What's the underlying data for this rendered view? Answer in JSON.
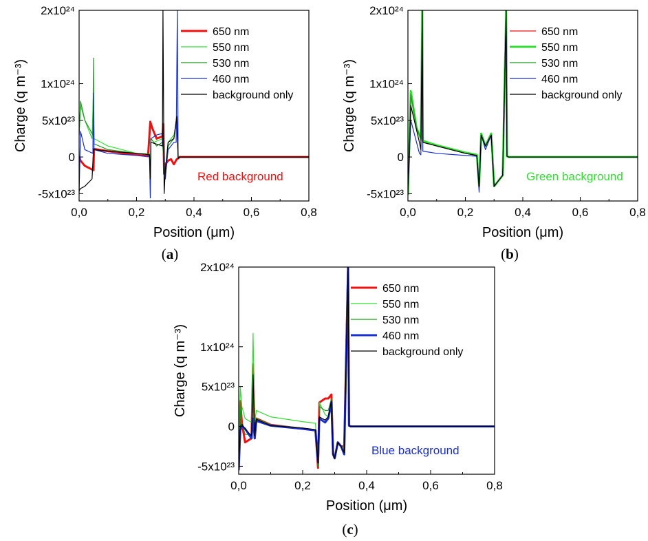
{
  "chart_data": [
    {
      "type": "line",
      "panel_label": "(a)",
      "annotation": "Red background",
      "annotation_color": "#ee1111",
      "xlabel": "Position (μm)",
      "ylabel": "Charge (q m⁻³)",
      "xlim": [
        0,
        0.8
      ],
      "ylim": [
        -6e+23,
        2e+24
      ],
      "xticks": [
        0,
        0.2,
        0.4,
        0.6,
        0.8
      ],
      "xtick_labels": [
        "0,0",
        "0,2",
        "0,4",
        "0,6",
        "0,8"
      ],
      "yticks": [
        -5e+23,
        0,
        5e+23,
        1e+24,
        2e+24
      ],
      "ytick_labels": [
        "-5x10²³",
        "0",
        "5x10²³",
        "1x10²⁴",
        "2x10²⁴"
      ],
      "legend_position": "top-right",
      "series": [
        {
          "name": "650 nm",
          "color": "#ee1111",
          "width": 3,
          "x": [
            0,
            0.005,
            0.02,
            0.05,
            0.052,
            0.1,
            0.2,
            0.24,
            0.248,
            0.255,
            0.27,
            0.29,
            0.293,
            0.296,
            0.3,
            0.31,
            0.32,
            0.33,
            0.34,
            0.345,
            0.35,
            0.8
          ],
          "y": [
            1e+22,
            -5e+22,
            -1.2e+23,
            -1.8e+23,
            1.1e+23,
            8e+22,
            3e+22,
            1e+22,
            4.8e+23,
            3.9e+23,
            2.5e+23,
            2.8e+23,
            4.5e+23,
            -2.3e+23,
            -1e+23,
            -5e+22,
            -3e+22,
            -1e+23,
            -3e+22,
            -2e+22,
            0,
            0
          ]
        },
        {
          "name": "550 nm",
          "color": "#33dd33",
          "width": 1.2,
          "x": [
            0,
            0.005,
            0.02,
            0.045,
            0.05,
            0.052,
            0.1,
            0.2,
            0.245,
            0.248,
            0.25,
            0.26,
            0.29,
            0.3,
            0.31,
            0.33,
            0.34,
            0.345,
            0.35,
            0.8
          ],
          "y": [
            3e+23,
            7e+23,
            5e+23,
            2.5e+23,
            9e+23,
            2.5e+23,
            1.5e+23,
            5e+22,
            4e+22,
            -2e+23,
            2.5e+23,
            2e+23,
            2.5e+23,
            -2.5e+23,
            2e+23,
            3e+23,
            5e+23,
            -2e+22,
            0,
            0
          ]
        },
        {
          "name": "530 nm",
          "color": "#229922",
          "width": 1.2,
          "x": [
            0,
            0.005,
            0.02,
            0.048,
            0.05,
            0.052,
            0.1,
            0.2,
            0.245,
            0.248,
            0.25,
            0.27,
            0.29,
            0.3,
            0.31,
            0.33,
            0.34,
            0.345,
            0.35,
            0.8
          ],
          "y": [
            3e+23,
            7.6e+23,
            5e+23,
            3e+23,
            1.35e+24,
            1.8e+23,
            1e+23,
            5e+22,
            4e+22,
            -3e+23,
            2.5e+23,
            1.5e+23,
            2e+23,
            -3e+23,
            1.5e+23,
            2.5e+23,
            5.6e+23,
            -2e+22,
            0,
            0
          ]
        },
        {
          "name": "460 nm",
          "color": "#1a2fd0",
          "width": 1.2,
          "x": [
            0,
            0.005,
            0.02,
            0.048,
            0.05,
            0.052,
            0.1,
            0.2,
            0.245,
            0.248,
            0.25,
            0.27,
            0.29,
            0.3,
            0.31,
            0.33,
            0.338,
            0.342,
            0.345,
            0.35,
            0.8
          ],
          "y": [
            -5e+23,
            3.5e+23,
            1e+23,
            5e+22,
            8.7e+23,
            1e+23,
            5e+22,
            2e+22,
            1e+22,
            -5.6e+23,
            2.5e+23,
            3e+23,
            3.2e+23,
            -3e+23,
            1e+23,
            2e+23,
            2e+23,
            2e+24,
            -2e+22,
            0,
            0
          ]
        },
        {
          "name": "background only",
          "color": "#000000",
          "width": 1.2,
          "x": [
            0,
            0.005,
            0.02,
            0.045,
            0.05,
            0.052,
            0.1,
            0.2,
            0.245,
            0.248,
            0.25,
            0.29,
            0.292,
            0.296,
            0.3,
            0.31,
            0.33,
            0.34,
            0.345,
            0.35,
            0.8
          ],
          "y": [
            -4.6e+23,
            -4.3e+23,
            -4e+23,
            -3e+23,
            1e+23,
            1e+23,
            8e+22,
            5e+22,
            3e+22,
            -3e+23,
            2e+23,
            1.5e+23,
            2e+24,
            -5e+23,
            -1.8e+23,
            2e+23,
            2.5e+23,
            5.5e+23,
            -2e+22,
            0,
            0
          ]
        }
      ]
    },
    {
      "type": "line",
      "panel_label": "(b)",
      "annotation": "Green background",
      "annotation_color": "#33dd33",
      "xlabel": "Position (μm)",
      "ylabel": "Charge (q m⁻³)",
      "xlim": [
        0,
        0.8
      ],
      "ylim": [
        -6e+23,
        2e+24
      ],
      "xticks": [
        0,
        0.2,
        0.4,
        0.6,
        0.8
      ],
      "xtick_labels": [
        "0,0",
        "0,2",
        "0,4",
        "0,6",
        "0,8"
      ],
      "yticks": [
        -5e+23,
        0,
        5e+23,
        1e+24,
        2e+24
      ],
      "ytick_labels": [
        "-5x10²³",
        "0",
        "5x10²³",
        "1x10²⁴",
        "2x10²⁴"
      ],
      "legend_position": "top-right",
      "series": [
        {
          "name": "650 nm",
          "color": "#ee1111",
          "width": 1.2,
          "x": [
            0,
            0.01,
            0.03,
            0.045,
            0.05,
            0.052,
            0.1,
            0.2,
            0.24,
            0.248,
            0.255,
            0.27,
            0.29,
            0.3,
            0.31,
            0.33,
            0.342,
            0.345,
            0.35,
            0.8
          ],
          "y": [
            -5e+23,
            8.5e+23,
            4e+23,
            2.5e+23,
            2e+24,
            2e+23,
            1.5e+23,
            5e+22,
            2e+22,
            -4e+23,
            3e+23,
            1.5e+23,
            3e+23,
            -4e+23,
            -3.5e+23,
            -2.5e+23,
            2e+24,
            1e+22,
            0,
            0
          ]
        },
        {
          "name": "550 nm",
          "color": "#33dd33",
          "width": 3,
          "x": [
            0,
            0.01,
            0.03,
            0.045,
            0.05,
            0.052,
            0.1,
            0.2,
            0.24,
            0.248,
            0.255,
            0.27,
            0.29,
            0.3,
            0.31,
            0.33,
            0.342,
            0.345,
            0.35,
            0.8
          ],
          "y": [
            -5.2e+23,
            9e+23,
            4e+23,
            2.5e+23,
            2e+24,
            2.2e+23,
            1.6e+23,
            6e+22,
            3e+22,
            -4e+23,
            3.2e+23,
            1.5e+23,
            3.2e+23,
            -4e+23,
            -3.5e+23,
            -2.5e+23,
            2e+24,
            1e+22,
            0,
            0
          ]
        },
        {
          "name": "530 nm",
          "color": "#229922",
          "width": 1.2,
          "x": [
            0,
            0.01,
            0.03,
            0.045,
            0.05,
            0.052,
            0.1,
            0.2,
            0.24,
            0.248,
            0.255,
            0.27,
            0.29,
            0.3,
            0.31,
            0.33,
            0.342,
            0.345,
            0.35,
            0.8
          ],
          "y": [
            -5e+23,
            8.5e+23,
            4e+23,
            2.5e+23,
            2e+24,
            2e+23,
            1.5e+23,
            5e+22,
            2e+22,
            -4e+23,
            3e+23,
            1.5e+23,
            3e+23,
            -4e+23,
            -3.5e+23,
            -2.5e+23,
            2e+24,
            1e+22,
            0,
            0
          ]
        },
        {
          "name": "460 nm",
          "color": "#1a2fd0",
          "width": 1.2,
          "x": [
            0,
            0.01,
            0.04,
            0.045,
            0.05,
            0.052,
            0.1,
            0.2,
            0.24,
            0.248,
            0.255,
            0.27,
            0.29,
            0.3,
            0.31,
            0.33,
            0.342,
            0.345,
            0.35,
            0.8
          ],
          "y": [
            -5e+23,
            5e+23,
            5e+22,
            3e+22,
            1.5e+24,
            8e+22,
            5e+22,
            2e+22,
            1e+22,
            -4.8e+23,
            3e+23,
            1e+23,
            3e+23,
            -4e+23,
            -3.5e+23,
            -2.5e+23,
            2e+24,
            1e+22,
            0,
            0
          ]
        },
        {
          "name": "background only",
          "color": "#000000",
          "width": 1.2,
          "x": [
            0,
            0.01,
            0.04,
            0.045,
            0.05,
            0.052,
            0.1,
            0.2,
            0.24,
            0.248,
            0.255,
            0.27,
            0.29,
            0.3,
            0.31,
            0.33,
            0.342,
            0.345,
            0.35,
            0.8
          ],
          "y": [
            -5e+23,
            7e+23,
            2e+23,
            1e+23,
            2e+24,
            2e+23,
            1.5e+23,
            5e+22,
            2e+22,
            -4e+23,
            3e+23,
            1.5e+23,
            3e+23,
            -4e+23,
            -3.5e+23,
            -2.5e+23,
            2e+24,
            1e+22,
            0,
            0
          ]
        }
      ]
    },
    {
      "type": "line",
      "panel_label": "(c)",
      "annotation": "Blue background",
      "annotation_color": "#1a2fd0",
      "xlabel": "Position (μm)",
      "ylabel": "Charge (q m⁻³)",
      "xlim": [
        0,
        0.8
      ],
      "ylim": [
        -6e+23,
        2e+24
      ],
      "xticks": [
        0,
        0.2,
        0.4,
        0.6,
        0.8
      ],
      "xtick_labels": [
        "0,0",
        "0,2",
        "0,4",
        "0,6",
        "0,8"
      ],
      "yticks": [
        -5e+23,
        0,
        5e+23,
        1e+24,
        2e+24
      ],
      "ytick_labels": [
        "-5x10²³",
        "0",
        "5x10²³",
        "1x10²⁴",
        "2x10²⁴"
      ],
      "legend_position": "top-right",
      "series": [
        {
          "name": "650 nm",
          "color": "#ee1111",
          "width": 3,
          "x": [
            0,
            0.005,
            0.01,
            0.02,
            0.04,
            0.045,
            0.05,
            0.055,
            0.1,
            0.2,
            0.24,
            0.248,
            0.252,
            0.27,
            0.28,
            0.29,
            0.295,
            0.3,
            0.31,
            0.32,
            0.33,
            0.342,
            0.345,
            0.35,
            0.8
          ],
          "y": [
            -5.5e+23,
            3.2e+23,
            5e+22,
            -2e+23,
            -1.5e+23,
            7.8e+23,
            -1.5e+23,
            1e+23,
            2e+22,
            -3e+22,
            -5e+22,
            -5.2e+23,
            3e+23,
            3.5e+23,
            3.5e+23,
            4e+23,
            -3.5e+23,
            -4e+23,
            -2e+23,
            -2.5e+23,
            -2.5e+23,
            2e+24,
            1e+22,
            0,
            0
          ]
        },
        {
          "name": "550 nm",
          "color": "#33dd33",
          "width": 1.2,
          "x": [
            0,
            0.005,
            0.01,
            0.02,
            0.04,
            0.045,
            0.05,
            0.055,
            0.1,
            0.2,
            0.24,
            0.248,
            0.252,
            0.27,
            0.28,
            0.29,
            0.295,
            0.3,
            0.31,
            0.32,
            0.33,
            0.342,
            0.345,
            0.35,
            0.8
          ],
          "y": [
            -5.5e+23,
            5e+23,
            2.5e+23,
            1e+23,
            5e+22,
            1.17e+24,
            5e+22,
            2e+23,
            1.2e+23,
            6e+22,
            4e+22,
            -4.5e+23,
            3e+23,
            1.5e+23,
            1.2e+23,
            3.5e+23,
            -3.5e+23,
            -4e+23,
            -2e+23,
            -2.5e+23,
            -2.5e+23,
            2e+24,
            1e+22,
            0,
            0
          ]
        },
        {
          "name": "530 nm",
          "color": "#229922",
          "width": 1.2,
          "x": [
            0,
            0.005,
            0.01,
            0.02,
            0.04,
            0.045,
            0.05,
            0.055,
            0.1,
            0.2,
            0.24,
            0.248,
            0.252,
            0.27,
            0.28,
            0.29,
            0.295,
            0.3,
            0.31,
            0.32,
            0.33,
            0.342,
            0.345,
            0.35,
            0.8
          ],
          "y": [
            -5.5e+23,
            3e+23,
            5e+22,
            -1e+23,
            -1e+23,
            4.5e+23,
            -1e+23,
            1e+23,
            2e+22,
            -2e+22,
            -4e+22,
            -5e+23,
            2.5e+23,
            2e+23,
            2e+23,
            3.5e+23,
            -3.5e+23,
            -4e+23,
            -2e+23,
            -2.5e+23,
            -2.5e+23,
            2e+24,
            1e+22,
            0,
            0
          ]
        },
        {
          "name": "460 nm",
          "color": "#1a2fd0",
          "width": 3,
          "x": [
            0,
            0.005,
            0.01,
            0.02,
            0.04,
            0.045,
            0.05,
            0.055,
            0.1,
            0.2,
            0.24,
            0.248,
            0.252,
            0.27,
            0.28,
            0.29,
            0.295,
            0.3,
            0.31,
            0.32,
            0.33,
            0.342,
            0.345,
            0.35,
            0.8
          ],
          "y": [
            -5.5e+23,
            -5e+22,
            0,
            -3e+22,
            -1.5e+23,
            1e+23,
            -1.5e+23,
            7e+22,
            1e+22,
            -3e+22,
            -5e+22,
            -4.5e+23,
            1e+23,
            5e+22,
            1e+23,
            3e+23,
            -3.5e+23,
            -4e+23,
            -2e+23,
            -2.5e+23,
            -3.5e+23,
            2e+24,
            1e+22,
            0,
            0
          ]
        },
        {
          "name": "background only",
          "color": "#000000",
          "width": 1.2,
          "x": [
            0,
            0.005,
            0.01,
            0.02,
            0.04,
            0.045,
            0.05,
            0.055,
            0.1,
            0.2,
            0.24,
            0.248,
            0.252,
            0.27,
            0.28,
            0.29,
            0.295,
            0.3,
            0.31,
            0.32,
            0.33,
            0.342,
            0.345,
            0.35,
            0.8
          ],
          "y": [
            -5.5e+23,
            0,
            3e+22,
            -3e+22,
            -1.2e+23,
            6.5e+23,
            -1.2e+23,
            9e+22,
            1e+22,
            -2e+22,
            -4e+22,
            -4.6e+23,
            1.2e+23,
            8e+22,
            1.2e+23,
            3.2e+23,
            -3.5e+23,
            -4e+23,
            -2e+23,
            -2.5e+23,
            -3.3e+23,
            2e+24,
            1e+22,
            0,
            0
          ]
        }
      ]
    }
  ]
}
